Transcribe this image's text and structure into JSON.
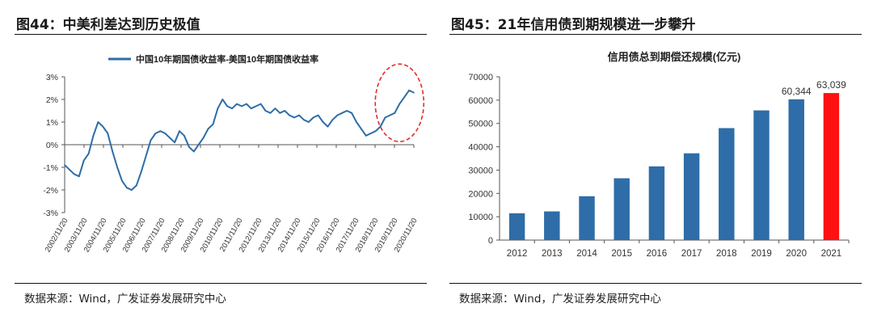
{
  "left_panel": {
    "figure_title": "图44：中美利差达到历史极值",
    "source": "数据来源：Wind，广发证券发展研究中心"
  },
  "right_panel": {
    "figure_title": "图45：21年信用债到期规模进一步攀升",
    "source": "数据来源：Wind，广发证券发展研究中心"
  },
  "chart_data": [
    {
      "type": "line",
      "title": "",
      "legend": "top-center",
      "series": [
        {
          "name": "中国10年期国债收益率-美国10年期国债收益率",
          "color": "#2e6da8",
          "x": [
            "2002/11",
            "2003/02",
            "2003/05",
            "2003/08",
            "2003/11",
            "2004/02",
            "2004/05",
            "2004/08",
            "2004/11",
            "2005/02",
            "2005/05",
            "2005/08",
            "2005/11",
            "2006/02",
            "2006/05",
            "2006/08",
            "2006/11",
            "2007/02",
            "2007/05",
            "2007/08",
            "2007/11",
            "2008/02",
            "2008/05",
            "2008/08",
            "2008/11",
            "2009/02",
            "2009/05",
            "2009/08",
            "2009/11",
            "2010/02",
            "2010/05",
            "2010/08",
            "2010/11",
            "2011/02",
            "2011/05",
            "2011/08",
            "2011/11",
            "2012/02",
            "2012/05",
            "2012/08",
            "2012/11",
            "2013/02",
            "2013/05",
            "2013/08",
            "2013/11",
            "2014/02",
            "2014/05",
            "2014/08",
            "2014/11",
            "2015/02",
            "2015/05",
            "2015/08",
            "2015/11",
            "2016/02",
            "2016/05",
            "2016/08",
            "2016/11",
            "2017/02",
            "2017/05",
            "2017/08",
            "2017/11",
            "2018/02",
            "2018/05",
            "2018/08",
            "2018/11",
            "2019/02",
            "2019/05",
            "2019/08",
            "2019/11",
            "2020/02",
            "2020/05",
            "2020/08",
            "2020/11",
            "2021/01"
          ],
          "values": [
            -0.9,
            -1.1,
            -1.3,
            -1.4,
            -0.7,
            -0.4,
            0.4,
            1.0,
            0.8,
            0.5,
            -0.3,
            -1.0,
            -1.6,
            -1.9,
            -2.0,
            -1.8,
            -1.2,
            -0.5,
            0.2,
            0.5,
            0.6,
            0.5,
            0.3,
            0.1,
            0.6,
            0.4,
            -0.1,
            -0.3,
            0.0,
            0.3,
            0.7,
            0.9,
            1.6,
            2.0,
            1.7,
            1.6,
            1.8,
            1.7,
            1.8,
            1.6,
            1.7,
            1.8,
            1.5,
            1.4,
            1.6,
            1.4,
            1.5,
            1.3,
            1.2,
            1.3,
            1.1,
            1.0,
            1.2,
            1.3,
            1.0,
            0.8,
            1.1,
            1.3,
            1.4,
            1.5,
            1.4,
            1.0,
            0.7,
            0.4,
            0.5,
            0.6,
            0.8,
            1.2,
            1.3,
            1.4,
            1.8,
            2.1,
            2.4,
            2.3
          ]
        }
      ],
      "x_tick_labels": [
        "2002/11/20",
        "2003/11/20",
        "2004/11/20",
        "2005/11/20",
        "2006/11/20",
        "2007/11/20",
        "2008/11/20",
        "2009/11/20",
        "2010/11/20",
        "2011/11/20",
        "2012/11/20",
        "2013/11/20",
        "2014/11/20",
        "2015/11/20",
        "2016/11/20",
        "2017/11/20",
        "2018/11/20",
        "2019/11/20",
        "2020/11/20"
      ],
      "y_tick_labels": [
        "3%",
        "2%",
        "1%",
        "0%",
        "-1%",
        "-2%",
        "-3%"
      ],
      "y_ticks": [
        3,
        2,
        1,
        0,
        -1,
        -2,
        -3
      ],
      "ylim": [
        -3,
        3
      ],
      "grid": false,
      "annotation": {
        "shape": "dashed-ellipse",
        "color": "#e52b2b",
        "highlights": "2019–2020 peak"
      }
    },
    {
      "type": "bar",
      "title": "信用债总到期偿还规模(亿元)",
      "categories": [
        "2012",
        "2013",
        "2014",
        "2015",
        "2016",
        "2017",
        "2018",
        "2019",
        "2020",
        "2021"
      ],
      "values": [
        11500,
        12300,
        18800,
        26500,
        31600,
        37200,
        48000,
        55600,
        60344,
        63039
      ],
      "bar_colors": [
        "#2e6da8",
        "#2e6da8",
        "#2e6da8",
        "#2e6da8",
        "#2e6da8",
        "#2e6da8",
        "#2e6da8",
        "#2e6da8",
        "#2e6da8",
        "#ff1111"
      ],
      "data_labels": [
        "",
        "",
        "",
        "",
        "",
        "",
        "",
        "",
        "60,344",
        "63,039"
      ],
      "y_tick_labels": [
        "70000",
        "60000",
        "50000",
        "40000",
        "30000",
        "20000",
        "10000",
        "0"
      ],
      "y_ticks": [
        70000,
        60000,
        50000,
        40000,
        30000,
        20000,
        10000,
        0
      ],
      "ylim": [
        0,
        70000
      ],
      "grid": false
    }
  ]
}
